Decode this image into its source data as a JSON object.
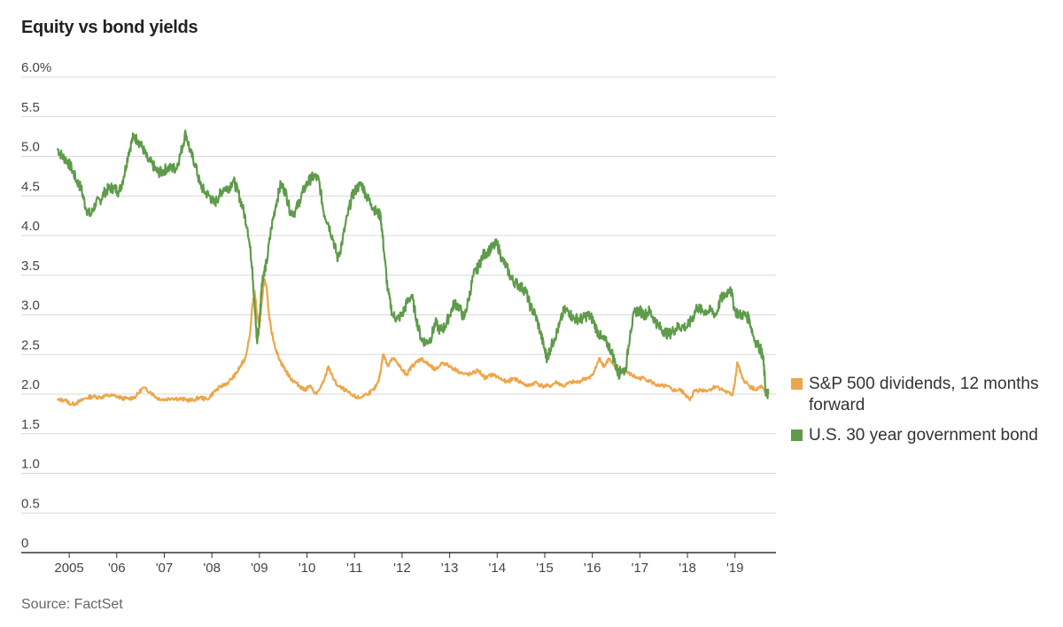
{
  "chart_data": {
    "type": "line",
    "title": "Equity vs bond yields",
    "source": "Source: FactSet",
    "xlabel": "",
    "ylabel": "",
    "xlim": [
      2004.7,
      2019.75
    ],
    "ylim": [
      0,
      6.0
    ],
    "grid": true,
    "legend_position": "right",
    "y_ticks": [
      {
        "value": 6.0,
        "label": "6.0%"
      },
      {
        "value": 5.5,
        "label": "5.5"
      },
      {
        "value": 5.0,
        "label": "5.0"
      },
      {
        "value": 4.5,
        "label": "4.5"
      },
      {
        "value": 4.0,
        "label": "4.0"
      },
      {
        "value": 3.5,
        "label": "3.5"
      },
      {
        "value": 3.0,
        "label": "3.0"
      },
      {
        "value": 2.5,
        "label": "2.5"
      },
      {
        "value": 2.0,
        "label": "2.0"
      },
      {
        "value": 1.5,
        "label": "1.5"
      },
      {
        "value": 1.0,
        "label": "1.0"
      },
      {
        "value": 0.5,
        "label": "0.5"
      },
      {
        "value": 0,
        "label": "0"
      }
    ],
    "x_ticks": [
      {
        "value": 2005,
        "label": "2005"
      },
      {
        "value": 2006,
        "label": "'06"
      },
      {
        "value": 2007,
        "label": "'07"
      },
      {
        "value": 2008,
        "label": "'08"
      },
      {
        "value": 2009,
        "label": "'09"
      },
      {
        "value": 2010,
        "label": "'10"
      },
      {
        "value": 2011,
        "label": "'11"
      },
      {
        "value": 2012,
        "label": "'12"
      },
      {
        "value": 2013,
        "label": "'13"
      },
      {
        "value": 2014,
        "label": "'14"
      },
      {
        "value": 2015,
        "label": "'15"
      },
      {
        "value": 2016,
        "label": "'16"
      },
      {
        "value": 2017,
        "label": "'17"
      },
      {
        "value": 2018,
        "label": "'18"
      },
      {
        "value": 2019,
        "label": "'19"
      }
    ],
    "series": [
      {
        "name": "U.S. 30 year government bond",
        "color": "#5e9b4a",
        "x": [
          2004.75,
          2004.85,
          2004.95,
          2005.05,
          2005.15,
          2005.25,
          2005.35,
          2005.45,
          2005.55,
          2005.65,
          2005.75,
          2005.85,
          2005.95,
          2006.05,
          2006.15,
          2006.25,
          2006.35,
          2006.45,
          2006.55,
          2006.65,
          2006.75,
          2006.85,
          2006.95,
          2007.05,
          2007.15,
          2007.25,
          2007.35,
          2007.45,
          2007.55,
          2007.65,
          2007.75,
          2007.85,
          2007.95,
          2008.05,
          2008.15,
          2008.25,
          2008.35,
          2008.45,
          2008.55,
          2008.65,
          2008.75,
          2008.85,
          2008.9,
          2008.95,
          2009.0,
          2009.05,
          2009.1,
          2009.15,
          2009.25,
          2009.35,
          2009.45,
          2009.55,
          2009.65,
          2009.75,
          2009.85,
          2009.95,
          2010.05,
          2010.15,
          2010.25,
          2010.35,
          2010.45,
          2010.55,
          2010.65,
          2010.75,
          2010.85,
          2010.95,
          2011.05,
          2011.15,
          2011.25,
          2011.35,
          2011.45,
          2011.55,
          2011.62,
          2011.7,
          2011.8,
          2011.9,
          2012.0,
          2012.1,
          2012.2,
          2012.3,
          2012.4,
          2012.5,
          2012.6,
          2012.7,
          2012.8,
          2012.9,
          2013.0,
          2013.1,
          2013.2,
          2013.3,
          2013.4,
          2013.5,
          2013.6,
          2013.7,
          2013.8,
          2013.9,
          2014.0,
          2014.1,
          2014.2,
          2014.3,
          2014.4,
          2014.5,
          2014.6,
          2014.7,
          2014.8,
          2014.9,
          2015.0,
          2015.05,
          2015.1,
          2015.2,
          2015.3,
          2015.4,
          2015.5,
          2015.6,
          2015.7,
          2015.8,
          2015.9,
          2016.0,
          2016.1,
          2016.2,
          2016.3,
          2016.4,
          2016.5,
          2016.55,
          2016.6,
          2016.7,
          2016.8,
          2016.9,
          2017.0,
          2017.1,
          2017.2,
          2017.3,
          2017.4,
          2017.5,
          2017.6,
          2017.7,
          2017.8,
          2017.9,
          2018.0,
          2018.1,
          2018.2,
          2018.3,
          2018.4,
          2018.5,
          2018.6,
          2018.7,
          2018.8,
          2018.9,
          2019.0,
          2019.1,
          2019.2,
          2019.3,
          2019.4,
          2019.5,
          2019.55,
          2019.6,
          2019.65,
          2019.7
        ],
        "y": [
          5.1,
          5.0,
          4.95,
          4.85,
          4.7,
          4.6,
          4.35,
          4.25,
          4.4,
          4.45,
          4.55,
          4.6,
          4.6,
          4.55,
          4.75,
          5.05,
          5.25,
          5.2,
          5.1,
          4.95,
          4.9,
          4.8,
          4.8,
          4.85,
          4.85,
          4.85,
          5.05,
          5.3,
          5.05,
          4.9,
          4.65,
          4.55,
          4.5,
          4.4,
          4.5,
          4.6,
          4.6,
          4.7,
          4.55,
          4.35,
          4.1,
          3.6,
          3.1,
          2.65,
          2.9,
          3.4,
          3.55,
          3.65,
          4.1,
          4.4,
          4.65,
          4.55,
          4.3,
          4.3,
          4.45,
          4.6,
          4.7,
          4.75,
          4.7,
          4.3,
          4.15,
          3.95,
          3.7,
          3.95,
          4.25,
          4.5,
          4.6,
          4.65,
          4.5,
          4.4,
          4.3,
          4.25,
          3.8,
          3.3,
          3.0,
          2.95,
          3.0,
          3.15,
          3.25,
          2.95,
          2.7,
          2.65,
          2.7,
          2.9,
          2.8,
          2.85,
          3.0,
          3.15,
          3.1,
          2.95,
          3.2,
          3.5,
          3.6,
          3.75,
          3.8,
          3.85,
          3.9,
          3.7,
          3.6,
          3.45,
          3.4,
          3.35,
          3.3,
          3.1,
          3.0,
          2.8,
          2.55,
          2.45,
          2.55,
          2.7,
          2.85,
          3.05,
          3.05,
          2.95,
          2.95,
          2.95,
          3.0,
          2.95,
          2.8,
          2.7,
          2.65,
          2.55,
          2.35,
          2.25,
          2.3,
          2.3,
          2.8,
          3.05,
          3.05,
          3.0,
          3.05,
          2.95,
          2.85,
          2.8,
          2.75,
          2.8,
          2.85,
          2.85,
          2.85,
          2.95,
          3.1,
          3.05,
          3.05,
          3.05,
          3.0,
          3.2,
          3.25,
          3.35,
          3.05,
          3.0,
          3.0,
          2.95,
          2.7,
          2.6,
          2.55,
          2.4,
          2.0,
          2.0
        ]
      },
      {
        "name": "S&P 500 dividends, 12 months forward",
        "color": "#eda64a",
        "x": [
          2004.75,
          2004.9,
          2005.05,
          2005.2,
          2005.35,
          2005.5,
          2005.65,
          2005.8,
          2005.95,
          2006.1,
          2006.25,
          2006.4,
          2006.55,
          2006.7,
          2006.85,
          2007.0,
          2007.15,
          2007.3,
          2007.45,
          2007.6,
          2007.75,
          2007.9,
          2008.05,
          2008.2,
          2008.35,
          2008.5,
          2008.6,
          2008.7,
          2008.8,
          2008.85,
          2008.9,
          2008.95,
          2009.0,
          2009.05,
          2009.1,
          2009.15,
          2009.2,
          2009.25,
          2009.35,
          2009.45,
          2009.55,
          2009.65,
          2009.75,
          2009.85,
          2009.95,
          2010.05,
          2010.2,
          2010.35,
          2010.45,
          2010.55,
          2010.65,
          2010.8,
          2010.95,
          2011.1,
          2011.25,
          2011.4,
          2011.5,
          2011.55,
          2011.6,
          2011.65,
          2011.7,
          2011.8,
          2011.9,
          2012.0,
          2012.1,
          2012.2,
          2012.3,
          2012.4,
          2012.5,
          2012.6,
          2012.7,
          2012.85,
          2013.0,
          2013.15,
          2013.3,
          2013.45,
          2013.6,
          2013.75,
          2013.9,
          2014.05,
          2014.2,
          2014.35,
          2014.5,
          2014.65,
          2014.8,
          2014.95,
          2015.1,
          2015.25,
          2015.4,
          2015.55,
          2015.7,
          2015.85,
          2015.95,
          2016.05,
          2016.15,
          2016.25,
          2016.35,
          2016.5,
          2016.65,
          2016.8,
          2016.95,
          2017.1,
          2017.25,
          2017.4,
          2017.55,
          2017.7,
          2017.85,
          2017.95,
          2018.05,
          2018.15,
          2018.3,
          2018.45,
          2018.6,
          2018.75,
          2018.9,
          2018.95,
          2019.0,
          2019.05,
          2019.15,
          2019.3,
          2019.45,
          2019.55,
          2019.65,
          2019.7
        ],
        "y": [
          1.92,
          1.93,
          1.87,
          1.9,
          1.95,
          1.97,
          1.96,
          1.98,
          1.98,
          1.95,
          1.94,
          1.97,
          2.08,
          2.03,
          1.95,
          1.93,
          1.95,
          1.94,
          1.93,
          1.92,
          1.96,
          1.93,
          2.03,
          2.1,
          2.15,
          2.25,
          2.35,
          2.45,
          2.75,
          3.1,
          3.3,
          3.0,
          2.85,
          3.15,
          3.45,
          3.35,
          3.0,
          2.8,
          2.55,
          2.4,
          2.3,
          2.2,
          2.15,
          2.1,
          2.05,
          2.1,
          2.0,
          2.15,
          2.35,
          2.2,
          2.1,
          2.05,
          1.98,
          1.95,
          2.0,
          2.05,
          2.15,
          2.3,
          2.5,
          2.45,
          2.35,
          2.45,
          2.4,
          2.3,
          2.25,
          2.35,
          2.4,
          2.45,
          2.4,
          2.35,
          2.3,
          2.4,
          2.35,
          2.3,
          2.25,
          2.25,
          2.3,
          2.2,
          2.25,
          2.2,
          2.15,
          2.2,
          2.15,
          2.1,
          2.15,
          2.1,
          2.1,
          2.15,
          2.1,
          2.15,
          2.15,
          2.2,
          2.2,
          2.3,
          2.45,
          2.35,
          2.45,
          2.3,
          2.3,
          2.25,
          2.2,
          2.2,
          2.15,
          2.1,
          2.1,
          2.05,
          2.05,
          2.0,
          1.92,
          2.05,
          2.05,
          2.05,
          2.1,
          2.05,
          2.0,
          2.0,
          2.15,
          2.4,
          2.2,
          2.1,
          2.05,
          2.1,
          2.0,
          2.05
        ]
      }
    ]
  }
}
